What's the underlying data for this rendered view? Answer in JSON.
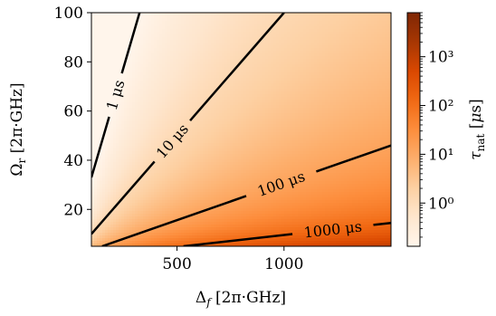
{
  "chart_data": {
    "type": "heatmap",
    "title": "",
    "xlabel": "Δ_f [2π·GHz]",
    "ylabel": "Ω_r [2π·GHz]",
    "xlim": [
      100,
      1500
    ],
    "ylim": [
      5,
      100
    ],
    "x_ticks": [
      500,
      1000
    ],
    "y_ticks": [
      20,
      40,
      60,
      80,
      100
    ],
    "x_tick_labels": [
      "500",
      "1000"
    ],
    "y_tick_labels": [
      "20",
      "40",
      "60",
      "80",
      "100"
    ],
    "colorbar": {
      "label": "τ_nat [μs]",
      "scale": "log",
      "range": [
        0.13,
        8000
      ],
      "ticks": [
        1,
        10,
        100,
        1000
      ],
      "tick_labels": [
        "10⁰",
        "10¹",
        "10²",
        "10³"
      ],
      "colormap": "Oranges",
      "color_low": "#fff5eb",
      "color_high": "#7f2704"
    },
    "contours": [
      {
        "label": "1 μs",
        "value": 1,
        "points": [
          [
            100,
            33
          ],
          [
            325,
            100
          ]
        ]
      },
      {
        "label": "10 μs",
        "value": 10,
        "points": [
          [
            100,
            10
          ],
          [
            1000,
            100
          ]
        ]
      },
      {
        "label": "100 μs",
        "value": 100,
        "points": [
          [
            150,
            5
          ],
          [
            1500,
            46
          ]
        ]
      },
      {
        "label": "1000 μs",
        "value": 1000,
        "points": [
          [
            530,
            5
          ],
          [
            1500,
            14.5
          ]
        ]
      }
    ],
    "grid": false,
    "legend": "none"
  }
}
